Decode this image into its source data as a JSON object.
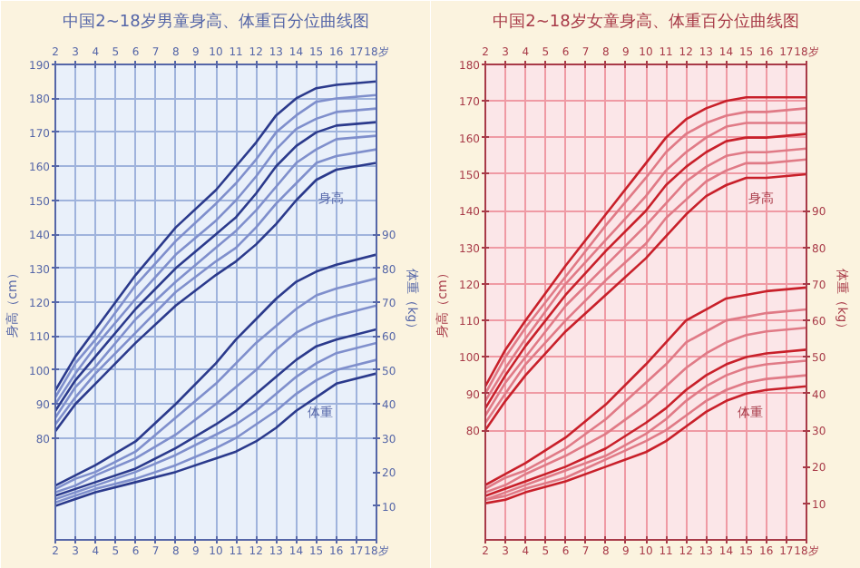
{
  "chart_data": [
    {
      "type": "line",
      "title": "中国2~18岁男童身高、体重百分位曲线图",
      "ylabel": "身高（cm）",
      "y2label": "体重（kg）",
      "x": [
        2,
        3,
        4,
        6,
        8,
        10,
        11,
        12,
        13,
        14,
        15,
        16,
        18
      ],
      "xlim": [
        2,
        18
      ],
      "xticks": [
        2,
        3,
        4,
        5,
        6,
        7,
        8,
        9,
        10,
        11,
        12,
        13,
        14,
        15,
        16,
        17,
        {
          "value": 18,
          "label": "18岁"
        }
      ],
      "x2lim": [
        2,
        18
      ],
      "x2ticks": [
        2,
        3,
        4,
        5,
        6,
        7,
        8,
        9,
        10,
        11,
        12,
        13,
        14,
        15,
        16,
        17,
        {
          "value": 18,
          "label": "18岁"
        }
      ],
      "ylim": [
        50,
        190
      ],
      "yticks": [
        80,
        90,
        100,
        110,
        120,
        130,
        140,
        150,
        160,
        170,
        180,
        190
      ],
      "y2lim": [
        0,
        140
      ],
      "y2ticks": [
        10,
        20,
        30,
        40,
        50,
        60,
        70,
        80,
        90
      ],
      "grid": true,
      "annotations": [
        "身高",
        "体重"
      ],
      "series": [
        {
          "color": "#2b3a8c",
          "values": [
            82,
            90,
            96,
            108,
            119,
            128,
            132,
            137,
            143,
            150,
            156,
            159,
            161
          ]
        },
        {
          "color": "#7f8fcc",
          "values": [
            84,
            92,
            99,
            111,
            123,
            132,
            136,
            142,
            149,
            155,
            161,
            163,
            165
          ]
        },
        {
          "color": "#7f8fcc",
          "values": [
            86,
            95,
            101,
            115,
            126,
            136,
            141,
            147,
            154,
            161,
            165,
            168,
            169
          ]
        },
        {
          "color": "#2b3a8c",
          "values": [
            88,
            97,
            104,
            118,
            130,
            140,
            145,
            152,
            160,
            166,
            170,
            172,
            173
          ]
        },
        {
          "color": "#7f8fcc",
          "values": [
            90,
            99,
            107,
            121,
            134,
            144,
            150,
            157,
            165,
            171,
            174,
            176,
            177
          ]
        },
        {
          "color": "#7f8fcc",
          "values": [
            92,
            102,
            109,
            125,
            138,
            149,
            155,
            162,
            170,
            175,
            179,
            180,
            181
          ]
        },
        {
          "color": "#2b3a8c",
          "values": [
            94,
            104,
            112,
            128,
            142,
            153,
            160,
            167,
            175,
            180,
            183,
            184,
            185
          ]
        },
        {
          "color": "#2b3a8c",
          "axis": "y2",
          "values": [
            10,
            12,
            14,
            17,
            20,
            24,
            26,
            29,
            33,
            38,
            42,
            46,
            49
          ]
        },
        {
          "color": "#7f8fcc",
          "axis": "y2",
          "values": [
            11,
            13,
            15,
            18,
            22,
            27,
            30,
            34,
            38,
            43,
            47,
            50,
            53
          ]
        },
        {
          "color": "#7f8fcc",
          "axis": "y2",
          "values": [
            12,
            14,
            16,
            20,
            25,
            31,
            34,
            38,
            43,
            48,
            52,
            55,
            58
          ]
        },
        {
          "color": "#2b3a8c",
          "axis": "y2",
          "values": [
            13,
            15,
            17,
            21,
            27,
            34,
            38,
            43,
            48,
            53,
            57,
            59,
            62
          ]
        },
        {
          "color": "#7f8fcc",
          "axis": "y2",
          "values": [
            14,
            16,
            19,
            24,
            31,
            40,
            45,
            50,
            56,
            61,
            64,
            66,
            69
          ]
        },
        {
          "color": "#7f8fcc",
          "axis": "y2",
          "values": [
            15,
            18,
            20,
            26,
            36,
            46,
            52,
            58,
            63,
            68,
            72,
            74,
            77
          ]
        },
        {
          "color": "#2b3a8c",
          "axis": "y2",
          "values": [
            16,
            19,
            22,
            29,
            40,
            52,
            59,
            65,
            71,
            76,
            79,
            81,
            84
          ]
        }
      ]
    },
    {
      "type": "line",
      "title": "中国2~18岁女童身高、体重百分位曲线图",
      "ylabel": "身高（cm）",
      "y2label": "体重（kg）",
      "x": [
        2,
        3,
        4,
        6,
        8,
        10,
        11,
        12,
        13,
        14,
        15,
        16,
        18
      ],
      "xlim": [
        2,
        18
      ],
      "xticks": [
        2,
        3,
        4,
        5,
        6,
        7,
        8,
        9,
        10,
        11,
        12,
        13,
        14,
        15,
        16,
        17,
        {
          "value": 18,
          "label": "18岁"
        }
      ],
      "x2lim": [
        2,
        18
      ],
      "x2ticks": [
        2,
        3,
        4,
        5,
        6,
        7,
        8,
        9,
        10,
        11,
        12,
        13,
        14,
        15,
        16,
        17,
        {
          "value": 18,
          "label": "18岁"
        }
      ],
      "ylim": [
        50,
        180
      ],
      "yticks": [
        80,
        90,
        100,
        110,
        120,
        130,
        140,
        150,
        160,
        170,
        180
      ],
      "y2lim": [
        0,
        130
      ],
      "y2ticks": [
        10,
        20,
        30,
        40,
        50,
        60,
        70,
        80,
        90
      ],
      "grid": true,
      "annotations": [
        "身高",
        "体重"
      ],
      "series": [
        {
          "color": "#c8202a",
          "values": [
            80,
            88,
            95,
            107,
            117,
            127,
            133,
            139,
            144,
            147,
            149,
            149,
            150
          ]
        },
        {
          "color": "#e07a86",
          "values": [
            82,
            90,
            98,
            110,
            121,
            131,
            138,
            143,
            148,
            151,
            153,
            153,
            154
          ]
        },
        {
          "color": "#e07a86",
          "values": [
            84,
            93,
            100,
            114,
            125,
            136,
            142,
            148,
            152,
            155,
            156,
            156,
            157
          ]
        },
        {
          "color": "#c8202a",
          "values": [
            86,
            95,
            103,
            117,
            129,
            140,
            147,
            152,
            156,
            159,
            160,
            160,
            161
          ]
        },
        {
          "color": "#e07a86",
          "values": [
            88,
            97,
            105,
            120,
            132,
            144,
            151,
            156,
            160,
            163,
            164,
            164,
            164
          ]
        },
        {
          "color": "#e07a86",
          "values": [
            90,
            100,
            108,
            122,
            136,
            149,
            156,
            161,
            164,
            166,
            167,
            167,
            168
          ]
        },
        {
          "color": "#c8202a",
          "values": [
            92,
            102,
            110,
            125,
            139,
            153,
            160,
            165,
            168,
            170,
            171,
            171,
            171
          ]
        },
        {
          "color": "#c8202a",
          "axis": "y2",
          "values": [
            10,
            11,
            13,
            16,
            20,
            24,
            27,
            31,
            35,
            38,
            40,
            41,
            42
          ]
        },
        {
          "color": "#e07a86",
          "axis": "y2",
          "values": [
            11,
            12,
            14,
            17,
            22,
            27,
            30,
            34,
            38,
            41,
            43,
            44,
            45
          ]
        },
        {
          "color": "#e07a86",
          "axis": "y2",
          "values": [
            11,
            13,
            15,
            19,
            23,
            29,
            33,
            38,
            42,
            45,
            47,
            48,
            49
          ]
        },
        {
          "color": "#c8202a",
          "axis": "y2",
          "values": [
            12,
            14,
            16,
            20,
            25,
            32,
            36,
            41,
            45,
            48,
            50,
            51,
            52
          ]
        },
        {
          "color": "#e07a86",
          "axis": "y2",
          "values": [
            13,
            15,
            18,
            23,
            29,
            37,
            42,
            47,
            51,
            54,
            56,
            57,
            58
          ]
        },
        {
          "color": "#e07a86",
          "axis": "y2",
          "values": [
            14,
            17,
            19,
            25,
            33,
            43,
            48,
            54,
            57,
            60,
            61,
            62,
            63
          ]
        },
        {
          "color": "#c8202a",
          "axis": "y2",
          "values": [
            15,
            18,
            21,
            28,
            37,
            48,
            54,
            60,
            63,
            66,
            67,
            68,
            69
          ]
        }
      ]
    }
  ]
}
